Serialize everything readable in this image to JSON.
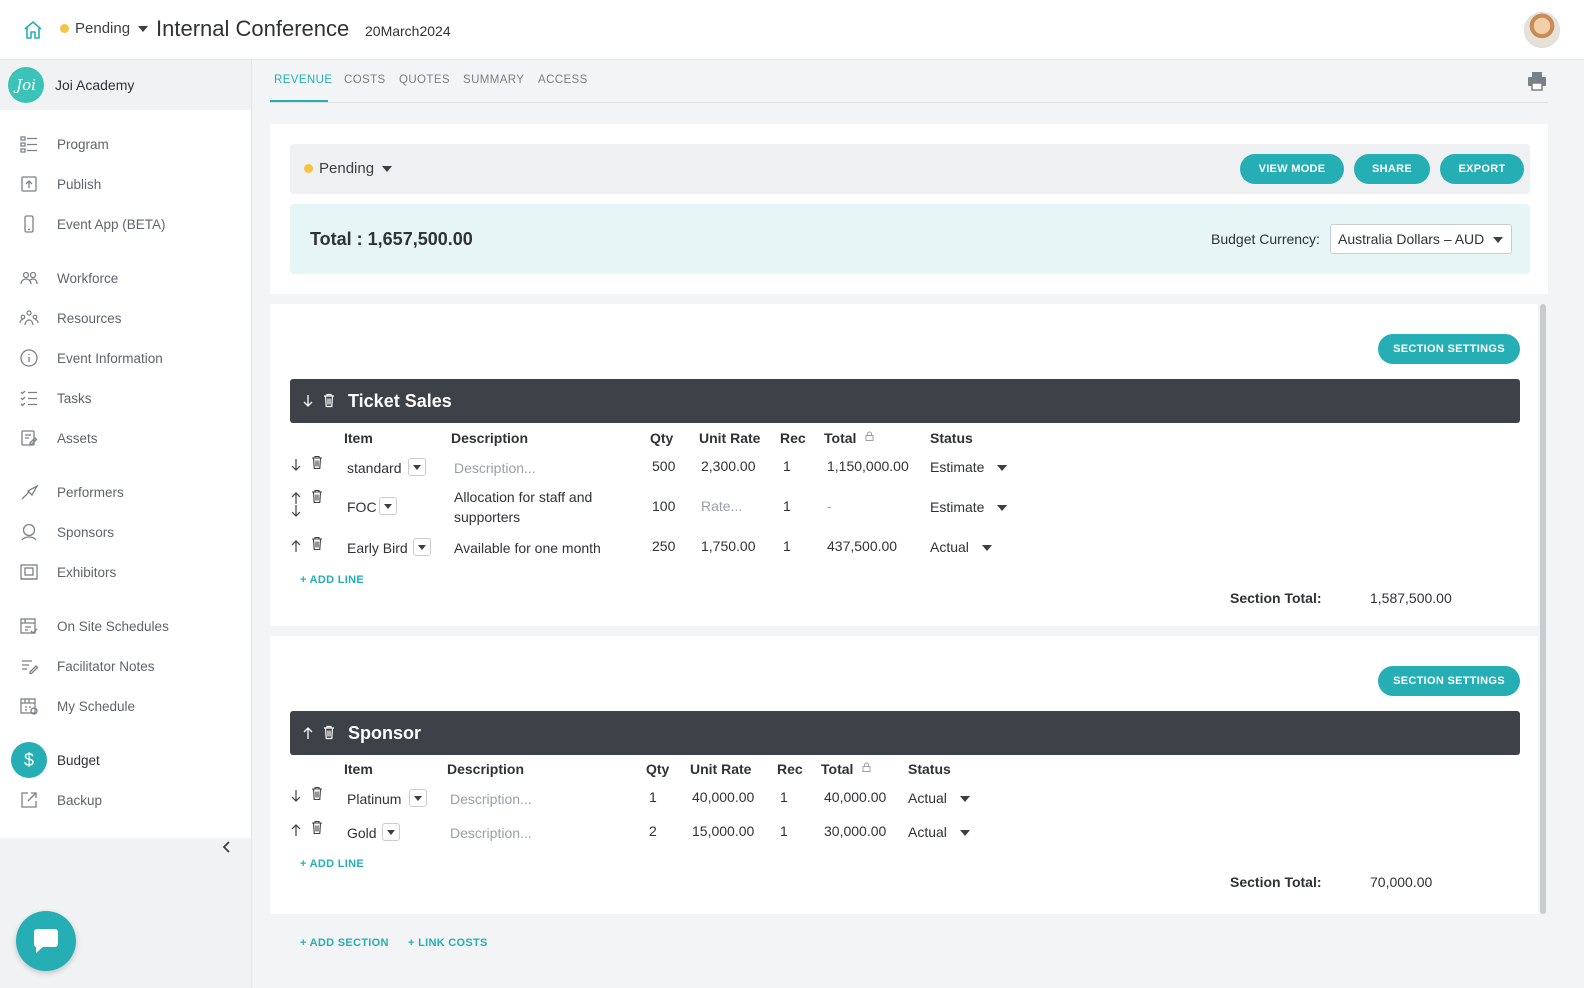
{
  "header": {
    "status": "Pending",
    "status_color": "#f6c244",
    "title": "Internal Conference",
    "date": "20March2024"
  },
  "sidebar": {
    "org_logo": "Joi",
    "org_name": "Joi Academy",
    "items": [
      {
        "label": "Program",
        "icon": "program-icon"
      },
      {
        "label": "Publish",
        "icon": "publish-icon"
      },
      {
        "label": "Event App (BETA)",
        "icon": "phone-icon"
      },
      {
        "label": "Workforce",
        "icon": "workforce-icon"
      },
      {
        "label": "Resources",
        "icon": "resources-icon"
      },
      {
        "label": "Event Information",
        "icon": "info-icon"
      },
      {
        "label": "Tasks",
        "icon": "tasks-icon"
      },
      {
        "label": "Assets",
        "icon": "assets-icon"
      },
      {
        "label": "Performers",
        "icon": "performers-icon"
      },
      {
        "label": "Sponsors",
        "icon": "sponsors-icon"
      },
      {
        "label": "Exhibitors",
        "icon": "exhibitors-icon"
      },
      {
        "label": "On Site Schedules",
        "icon": "onsite-schedules-icon"
      },
      {
        "label": "Facilitator Notes",
        "icon": "facilitator-notes-icon"
      },
      {
        "label": "My Schedule",
        "icon": "my-schedule-icon"
      },
      {
        "label": "Budget",
        "icon": "dollar-icon"
      },
      {
        "label": "Backup",
        "icon": "backup-icon"
      }
    ],
    "active_item": "Budget"
  },
  "tabs": [
    {
      "label": "REVENUE"
    },
    {
      "label": "COSTS"
    },
    {
      "label": "QUOTES"
    },
    {
      "label": "SUMMARY"
    },
    {
      "label": "ACCESS"
    }
  ],
  "summary": {
    "status": "Pending",
    "buttons": {
      "view_mode": "VIEW MODE",
      "share": "SHARE",
      "export": "EXPORT"
    },
    "total_text": "Total : 1,657,500.00",
    "currency_label": "Budget Currency:",
    "currency_value": "Australia Dollars – AUD"
  },
  "columns": {
    "item": "Item",
    "description": "Description",
    "qty": "Qty",
    "unit_rate": "Unit Rate",
    "rec": "Rec",
    "total": "Total",
    "status": "Status"
  },
  "sections": [
    {
      "title": "Ticket Sales",
      "settings_label": "SECTION SETTINGS",
      "rows": [
        {
          "item": "standard",
          "description": "",
          "description_placeholder": "Description...",
          "qty": "500",
          "unit_rate": "2,300.00",
          "rec": "1",
          "total": "1,150,000.00",
          "status": "Estimate"
        },
        {
          "item": "FOC",
          "description": "Allocation for staff and",
          "description_line2": "supporters",
          "qty": "100",
          "unit_rate": "",
          "unit_rate_placeholder": "Rate...",
          "rec": "1",
          "total": "-",
          "status": "Estimate"
        },
        {
          "item": "Early Bird",
          "description": "Available for one month",
          "qty": "250",
          "unit_rate": "1,750.00",
          "rec": "1",
          "total": "437,500.00",
          "status": "Actual"
        }
      ],
      "add_line": "+ ADD LINE",
      "total_label": "Section Total:",
      "total_value": "1,587,500.00"
    },
    {
      "title": "Sponsor",
      "settings_label": "SECTION SETTINGS",
      "rows": [
        {
          "item": "Platinum",
          "description": "",
          "description_placeholder": "Description...",
          "qty": "1",
          "unit_rate": "40,000.00",
          "rec": "1",
          "total": "40,000.00",
          "status": "Actual"
        },
        {
          "item": "Gold",
          "description": "",
          "description_placeholder": "Description...",
          "qty": "2",
          "unit_rate": "15,000.00",
          "rec": "1",
          "total": "30,000.00",
          "status": "Actual"
        }
      ],
      "add_line": "+ ADD LINE",
      "total_label": "Section Total:",
      "total_value": "70,000.00"
    }
  ],
  "footer_links": {
    "add_section": "+ ADD SECTION",
    "link_costs": "+ LINK COSTS"
  },
  "colors": {
    "accent": "#26aeb5",
    "header_dark": "#3d4148",
    "pending": "#f6c244"
  }
}
